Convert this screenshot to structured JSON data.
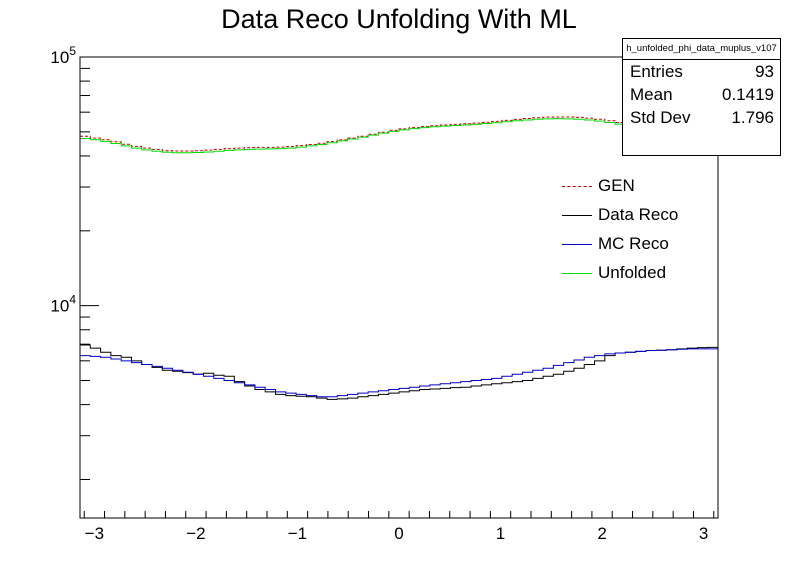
{
  "chart_data": {
    "type": "line",
    "title": "Data Reco Unfolding With ML",
    "xlabel": "",
    "ylabel": "",
    "xlim": [
      -3.14159,
      3.14159
    ],
    "ylim": [
      1400,
      100000
    ],
    "yscale": "log",
    "bins": 62,
    "x_ticks": [
      "−3",
      "−2",
      "−1",
      "0",
      "1",
      "2",
      "3"
    ],
    "y_ticks": [
      {
        "base": "10",
        "exp": "5"
      },
      {
        "base": "10",
        "exp": "4"
      }
    ],
    "legend_position": "right",
    "series": [
      {
        "name": "GEN",
        "color": "#cc0000",
        "style": "dashed",
        "values": [
          48000,
          47200,
          46500,
          45600,
          44600,
          43700,
          43000,
          42500,
          42000,
          41900,
          41900,
          42000,
          42200,
          42500,
          42800,
          43000,
          43200,
          43300,
          43300,
          43400,
          43600,
          44000,
          44500,
          45000,
          45700,
          46400,
          47200,
          48000,
          48900,
          49800,
          50700,
          51400,
          52000,
          52500,
          52900,
          53300,
          53600,
          53900,
          54200,
          54600,
          55100,
          55600,
          56100,
          56600,
          57000,
          57300,
          57400,
          57400,
          57200,
          56800,
          56200,
          55400,
          54500,
          53600,
          52700,
          51800,
          51000,
          50300,
          49600,
          49000,
          48500,
          48100
        ]
      },
      {
        "name": "Data Reco",
        "color": "#000000",
        "style": "solid",
        "values": [
          6950,
          6750,
          6500,
          6300,
          6200,
          6000,
          5800,
          5650,
          5500,
          5450,
          5380,
          5300,
          5350,
          5250,
          5200,
          4950,
          4750,
          4600,
          4500,
          4400,
          4350,
          4320,
          4300,
          4250,
          4200,
          4220,
          4250,
          4300,
          4350,
          4400,
          4450,
          4500,
          4550,
          4600,
          4620,
          4650,
          4680,
          4700,
          4750,
          4800,
          4850,
          4900,
          4950,
          5000,
          5100,
          5200,
          5300,
          5450,
          5600,
          5800,
          6000,
          6300,
          6450,
          6500,
          6550,
          6600,
          6620,
          6650,
          6700,
          6750,
          6780,
          6800
        ]
      },
      {
        "name": "MC Reco",
        "color": "#0000cc",
        "style": "solid",
        "values": [
          6300,
          6250,
          6200,
          6100,
          6000,
          5900,
          5800,
          5700,
          5600,
          5500,
          5400,
          5300,
          5200,
          5100,
          5000,
          4900,
          4800,
          4700,
          4600,
          4500,
          4450,
          4400,
          4350,
          4300,
          4300,
          4350,
          4400,
          4450,
          4500,
          4550,
          4600,
          4650,
          4700,
          4750,
          4800,
          4850,
          4900,
          4950,
          5000,
          5050,
          5100,
          5200,
          5300,
          5400,
          5500,
          5600,
          5750,
          5900,
          6050,
          6200,
          6300,
          6400,
          6450,
          6500,
          6550,
          6600,
          6620,
          6650,
          6680,
          6700,
          6700,
          6700
        ]
      },
      {
        "name": "Unfolded",
        "color": "#00dd00",
        "style": "solid",
        "values": [
          47000,
          46500,
          45800,
          44900,
          43900,
          43000,
          42300,
          41800,
          41400,
          41200,
          41200,
          41300,
          41500,
          41800,
          42100,
          42300,
          42500,
          42600,
          42700,
          42800,
          43000,
          43400,
          43900,
          44500,
          45200,
          46000,
          46800,
          47600,
          48500,
          49400,
          50200,
          50900,
          51500,
          52000,
          52400,
          52700,
          53000,
          53300,
          53600,
          54000,
          54400,
          54900,
          55400,
          55800,
          56200,
          56400,
          56500,
          56400,
          56200,
          55800,
          55200,
          54500,
          53700,
          52800,
          51900,
          51100,
          50300,
          49600,
          49000,
          48400,
          47900,
          47500
        ]
      }
    ]
  },
  "stats_box": {
    "name": "h_unfolded_phi_data_muplus_v107",
    "rows": [
      {
        "label": "Entries",
        "value": "93"
      },
      {
        "label": "Mean",
        "value": "0.1419"
      },
      {
        "label": "Std Dev",
        "value": "1.796"
      }
    ]
  }
}
